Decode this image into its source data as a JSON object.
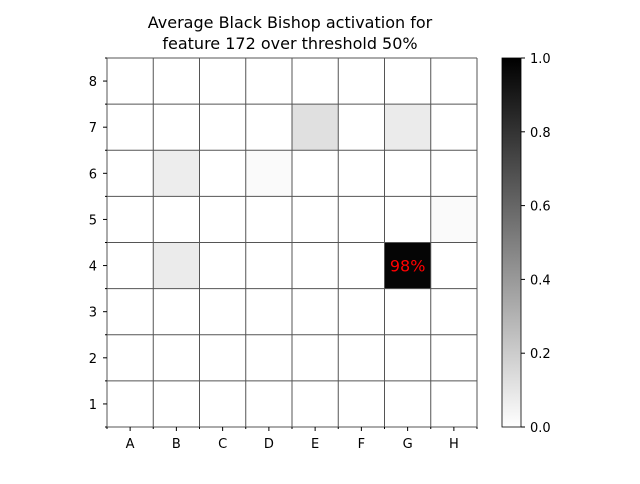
{
  "chart_data": {
    "type": "heatmap",
    "title_lines": [
      "Average Black Bishop activation for",
      "feature 172 over threshold 50%"
    ],
    "x_categories": [
      "A",
      "B",
      "C",
      "D",
      "E",
      "F",
      "G",
      "H"
    ],
    "y_categories": [
      "1",
      "2",
      "3",
      "4",
      "5",
      "6",
      "7",
      "8"
    ],
    "values": [
      [
        0,
        0,
        0,
        0,
        0,
        0,
        0,
        0
      ],
      [
        0,
        0,
        0,
        0,
        0,
        0,
        0,
        0
      ],
      [
        0,
        0,
        0,
        0,
        0,
        0,
        0,
        0
      ],
      [
        0,
        0.08,
        0,
        0,
        0,
        0,
        0.98,
        0
      ],
      [
        0,
        0,
        0,
        0,
        0,
        0,
        0,
        0.02
      ],
      [
        0,
        0.07,
        0,
        0.02,
        0,
        0,
        0,
        0
      ],
      [
        0,
        0,
        0,
        0,
        0.12,
        0,
        0.08,
        0
      ],
      [
        0,
        0,
        0,
        0,
        0,
        0,
        0,
        0
      ]
    ],
    "annotations": [
      {
        "square": "G4",
        "text": "98%",
        "color": "#ff0000"
      }
    ],
    "colormap": "Greys",
    "vmin": 0.0,
    "vmax": 1.0,
    "colorbar_ticks": [
      0.0,
      0.2,
      0.4,
      0.6,
      0.8,
      1.0
    ],
    "colorbar_tick_labels": [
      "0.0",
      "0.2",
      "0.4",
      "0.6",
      "0.8",
      "1.0"
    ],
    "grid": true,
    "grid_color": "#555555"
  }
}
